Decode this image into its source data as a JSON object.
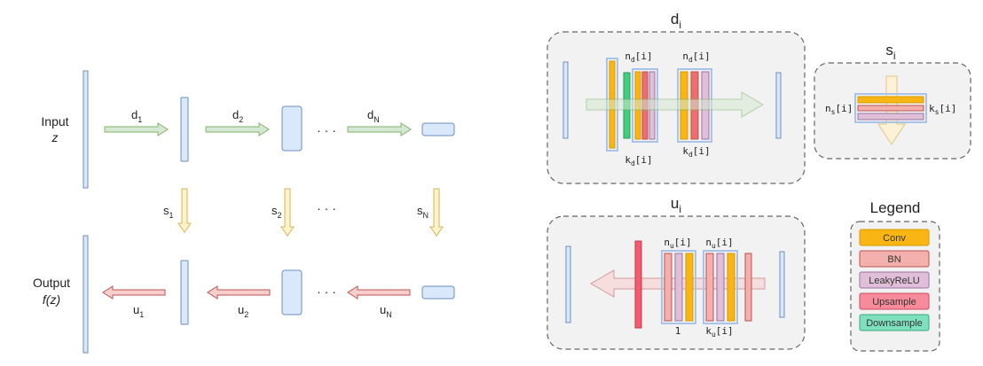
{
  "left": {
    "input_label": "Input",
    "input_var": "z",
    "output_label": "Output",
    "output_var": "f(z)",
    "ellipsis": "· · ·",
    "d": [
      {
        "base": "d",
        "sub": "1"
      },
      {
        "base": "d",
        "sub": "2"
      },
      {
        "base": "d",
        "sub": "N"
      }
    ],
    "s": [
      {
        "base": "s",
        "sub": "1"
      },
      {
        "base": "s",
        "sub": "2"
      },
      {
        "base": "s",
        "sub": "N"
      }
    ],
    "u": [
      {
        "base": "u",
        "sub": "1"
      },
      {
        "base": "u",
        "sub": "2"
      },
      {
        "base": "u",
        "sub": "N"
      }
    ]
  },
  "blocks": {
    "d_title": {
      "base": "d",
      "sub": "i"
    },
    "s_title": {
      "base": "s",
      "sub": "i"
    },
    "u_title": {
      "base": "u",
      "sub": "i"
    },
    "nd": {
      "base": "n",
      "sub": "d",
      "suffix": "[i]"
    },
    "kd": {
      "base": "k",
      "sub": "d",
      "suffix": "[i]"
    },
    "ns": {
      "base": "n",
      "sub": "s",
      "suffix": "[i]"
    },
    "ks": {
      "base": "k",
      "sub": "s",
      "suffix": "[i]"
    },
    "nu": {
      "base": "n",
      "sub": "u",
      "suffix": "[i]"
    },
    "ku": {
      "base": "k",
      "sub": "u",
      "suffix": "[i]"
    },
    "one": "1"
  },
  "legend": {
    "title": "Legend",
    "items": [
      {
        "label": "Conv",
        "color": "#f8b514",
        "border": "#d79b00"
      },
      {
        "label": "BN",
        "color": "#f3b0ac",
        "border": "#b85450"
      },
      {
        "label": "LeakyReLU",
        "color": "#e1bfd8",
        "border": "#9673a6"
      },
      {
        "label": "Upsample",
        "color": "#f88b9b",
        "border": "#d24a5e"
      },
      {
        "label": "Downsample",
        "color": "#7ee0bf",
        "border": "#3ea87f"
      }
    ]
  },
  "colors": {
    "fm_fill": "#dae8fc",
    "fm_stroke": "#6c8ebf",
    "green_fill": "#d5e8d4",
    "green_stroke": "#82b366",
    "yellow_fill": "#fff2cc",
    "yellow_stroke": "#d6b656",
    "red_fill": "#f8cecc",
    "red_stroke": "#b85450",
    "panel_fill": "#f2f2f2",
    "panel_stroke": "#666666"
  }
}
